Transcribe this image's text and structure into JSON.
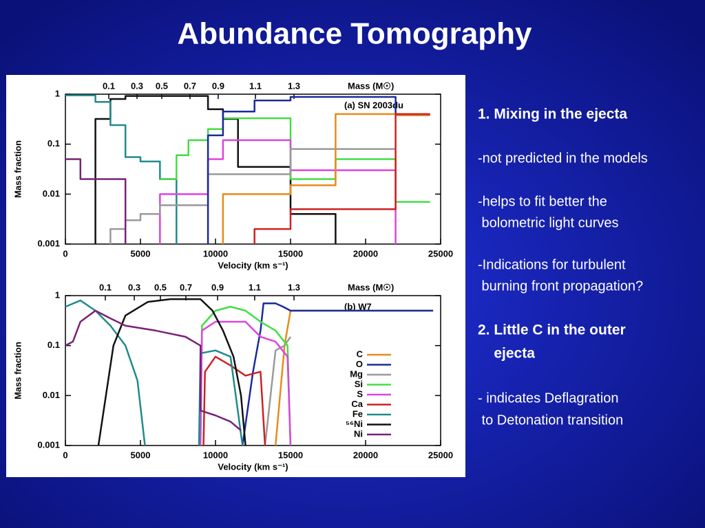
{
  "slide": {
    "title": "Abundance Tomography",
    "points": [
      {
        "lines": [
          "1. Mixing in the ejecta"
        ],
        "bold": true
      },
      {
        "lines": [
          "-not predicted in the models"
        ],
        "bold": false
      },
      {
        "lines": [
          "-helps to fit better the",
          " bolometric light curves"
        ],
        "bold": false
      },
      {
        "lines": [
          "-Indications for turbulent",
          " burning front propagation?"
        ],
        "bold": false
      },
      {
        "lines": [
          "2. Little C in the outer",
          "    ejecta"
        ],
        "bold": true
      },
      {
        "lines": [
          "- indicates Deflagration",
          " to Detonation transition"
        ],
        "bold": false
      }
    ]
  },
  "chart_data": [
    {
      "type": "line",
      "step": true,
      "annotation": "(a) SN 2003du",
      "xlabel": "Velocity (km s⁻¹)",
      "ylabel": "Mass fraction",
      "xlim": [
        0,
        25000
      ],
      "xticks": [
        0,
        5000,
        10000,
        15000,
        20000,
        25000
      ],
      "ylim": [
        0.001,
        1
      ],
      "yticks": [
        0.001,
        0.01,
        0.1,
        1
      ],
      "log_y": true,
      "mass_axis": {
        "label": "Mass (M☉)",
        "ticks": [
          {
            "mass": 0.1,
            "velocity": 2890
          },
          {
            "mass": 0.3,
            "velocity": 4770
          },
          {
            "mass": 0.5,
            "velocity": 6420
          },
          {
            "mass": 0.7,
            "velocity": 8300
          },
          {
            "mass": 0.9,
            "velocity": 10180
          },
          {
            "mass": 1.1,
            "velocity": 12660
          },
          {
            "mass": 1.3,
            "velocity": 15230
          }
        ]
      },
      "series": [
        {
          "color": "#111111",
          "x": [
            2000,
            2000,
            3000,
            4000,
            9500,
            10500,
            11500,
            15000,
            18000,
            18000
          ],
          "values": [
            0.001,
            0.32,
            0.8,
            0.92,
            0.5,
            0.32,
            0.035,
            0.004,
            0.004,
            0.001
          ]
        },
        {
          "color": "#208a8a",
          "x": [
            0,
            2000,
            3000,
            4000,
            5000,
            6300,
            7400,
            7400
          ],
          "values": [
            0.95,
            0.7,
            0.24,
            0.055,
            0.045,
            0.02,
            0.02,
            0.001
          ]
        },
        {
          "color": "#44dd44",
          "x": [
            6300,
            7400,
            8200,
            9500,
            10500,
            15000,
            18000,
            22000,
            24300
          ],
          "values": [
            0.02,
            0.06,
            0.12,
            0.2,
            0.33,
            0.02,
            0.05,
            0.007,
            0.007
          ]
        },
        {
          "color": "#dd44dd",
          "x": [
            6300,
            6300,
            9500,
            10500,
            15000,
            22000,
            22000
          ],
          "values": [
            0.001,
            0.01,
            0.05,
            0.12,
            0.03,
            0.03,
            0.001
          ]
        },
        {
          "color": "#999999",
          "x": [
            3000,
            3000,
            4000,
            5000,
            6300,
            9500,
            15000,
            22000
          ],
          "values": [
            0.001,
            0.002,
            0.003,
            0.004,
            0.006,
            0.025,
            0.08,
            0.08
          ]
        },
        {
          "color": "#1a2a9a",
          "x": [
            9500,
            9500,
            10500,
            12600,
            15000,
            22000,
            24300
          ],
          "values": [
            0.001,
            0.15,
            0.45,
            0.75,
            0.88,
            0.38,
            0.38
          ]
        },
        {
          "color": "#e88a1a",
          "x": [
            10500,
            10500,
            15000,
            18000,
            22000,
            24300
          ],
          "values": [
            0.001,
            0.01,
            0.015,
            0.4,
            0.38,
            0.38
          ]
        },
        {
          "color": "#cc2222",
          "x": [
            12600,
            12600,
            15000,
            22000,
            24300
          ],
          "values": [
            0.001,
            0.002,
            0.005,
            0.4,
            0.4
          ]
        },
        {
          "color": "#772277",
          "x": [
            0,
            1000,
            4000,
            4000
          ],
          "values": [
            0.05,
            0.02,
            0.02,
            0.001
          ]
        }
      ]
    },
    {
      "type": "line",
      "step": false,
      "annotation": "(b) W7",
      "xlabel": "Velocity (km s⁻¹)",
      "ylabel": "Mass fraction",
      "xlim": [
        0,
        25000
      ],
      "xticks": [
        0,
        5000,
        10000,
        15000,
        20000,
        25000
      ],
      "ylim": [
        0.001,
        1
      ],
      "yticks": [
        0.001,
        0.01,
        0.1,
        1
      ],
      "log_y": true,
      "legend": "right",
      "mass_axis": {
        "label": "Mass (M☉)",
        "ticks": [
          {
            "mass": 0.1,
            "velocity": 2660
          },
          {
            "mass": 0.3,
            "velocity": 4590
          },
          {
            "mass": 0.5,
            "velocity": 6330
          },
          {
            "mass": 0.7,
            "velocity": 8030
          },
          {
            "mass": 0.9,
            "velocity": 10140
          },
          {
            "mass": 1.1,
            "velocity": 12610
          },
          {
            "mass": 1.3,
            "velocity": 15230
          }
        ]
      },
      "series": [
        {
          "name": "C",
          "color": "#e88a1a",
          "x": [
            14000,
            14600,
            15000,
            24500
          ],
          "values": [
            0.001,
            0.1,
            0.5,
            0.5
          ]
        },
        {
          "name": "O",
          "color": "#1a2a9a",
          "x": [
            11800,
            12500,
            13000,
            13200,
            14000,
            14500,
            15000,
            24500
          ],
          "values": [
            0.001,
            0.03,
            0.2,
            0.7,
            0.7,
            0.6,
            0.5,
            0.5
          ]
        },
        {
          "name": "Mg",
          "color": "#999999",
          "x": [
            13300,
            14000,
            14600,
            15000
          ],
          "values": [
            0.001,
            0.08,
            0.1,
            0.15
          ]
        },
        {
          "name": "Si",
          "color": "#44dd44",
          "x": [
            9000,
            9100,
            10000,
            11000,
            12000,
            13000,
            14000,
            14800,
            15000
          ],
          "values": [
            0.001,
            0.25,
            0.5,
            0.6,
            0.5,
            0.3,
            0.2,
            0.1,
            0.001
          ]
        },
        {
          "name": "S",
          "color": "#dd44dd",
          "x": [
            9000,
            9100,
            10000,
            12000,
            13000,
            14000,
            14800,
            15000
          ],
          "values": [
            0.001,
            0.2,
            0.3,
            0.3,
            0.15,
            0.12,
            0.06,
            0.001
          ]
        },
        {
          "name": "Ca",
          "color": "#cc2222",
          "x": [
            9200,
            9300,
            10000,
            11000,
            12000,
            13000,
            13300
          ],
          "values": [
            0.001,
            0.03,
            0.06,
            0.04,
            0.025,
            0.03,
            0.001
          ]
        },
        {
          "name": "Fe",
          "color": "#208a8a",
          "x": [
            0,
            1000,
            2000,
            3000,
            4000,
            4800,
            5300,
            null,
            8900,
            9000,
            10000,
            11000,
            11800
          ],
          "values": [
            0.6,
            0.8,
            0.5,
            0.25,
            0.1,
            0.02,
            0.001,
            null,
            0.001,
            0.07,
            0.08,
            0.06,
            0.001
          ]
        },
        {
          "name": "⁵⁶Ni",
          "color": "#111111",
          "x": [
            2200,
            2700,
            3200,
            4000,
            5500,
            7000,
            9000,
            9800,
            10500,
            11200,
            11700,
            12000
          ],
          "values": [
            0.001,
            0.01,
            0.1,
            0.4,
            0.75,
            0.85,
            0.85,
            0.5,
            0.2,
            0.06,
            0.01,
            0.001
          ]
        },
        {
          "name": "Ni",
          "color": "#772277",
          "x": [
            0,
            500,
            1000,
            2000,
            3000,
            4000,
            6000,
            8000,
            9000,
            9000,
            10000,
            11000,
            11700
          ],
          "values": [
            0.1,
            0.12,
            0.3,
            0.5,
            0.35,
            0.25,
            0.2,
            0.15,
            0.1,
            0.005,
            0.004,
            0.003,
            0.002
          ]
        }
      ]
    }
  ]
}
